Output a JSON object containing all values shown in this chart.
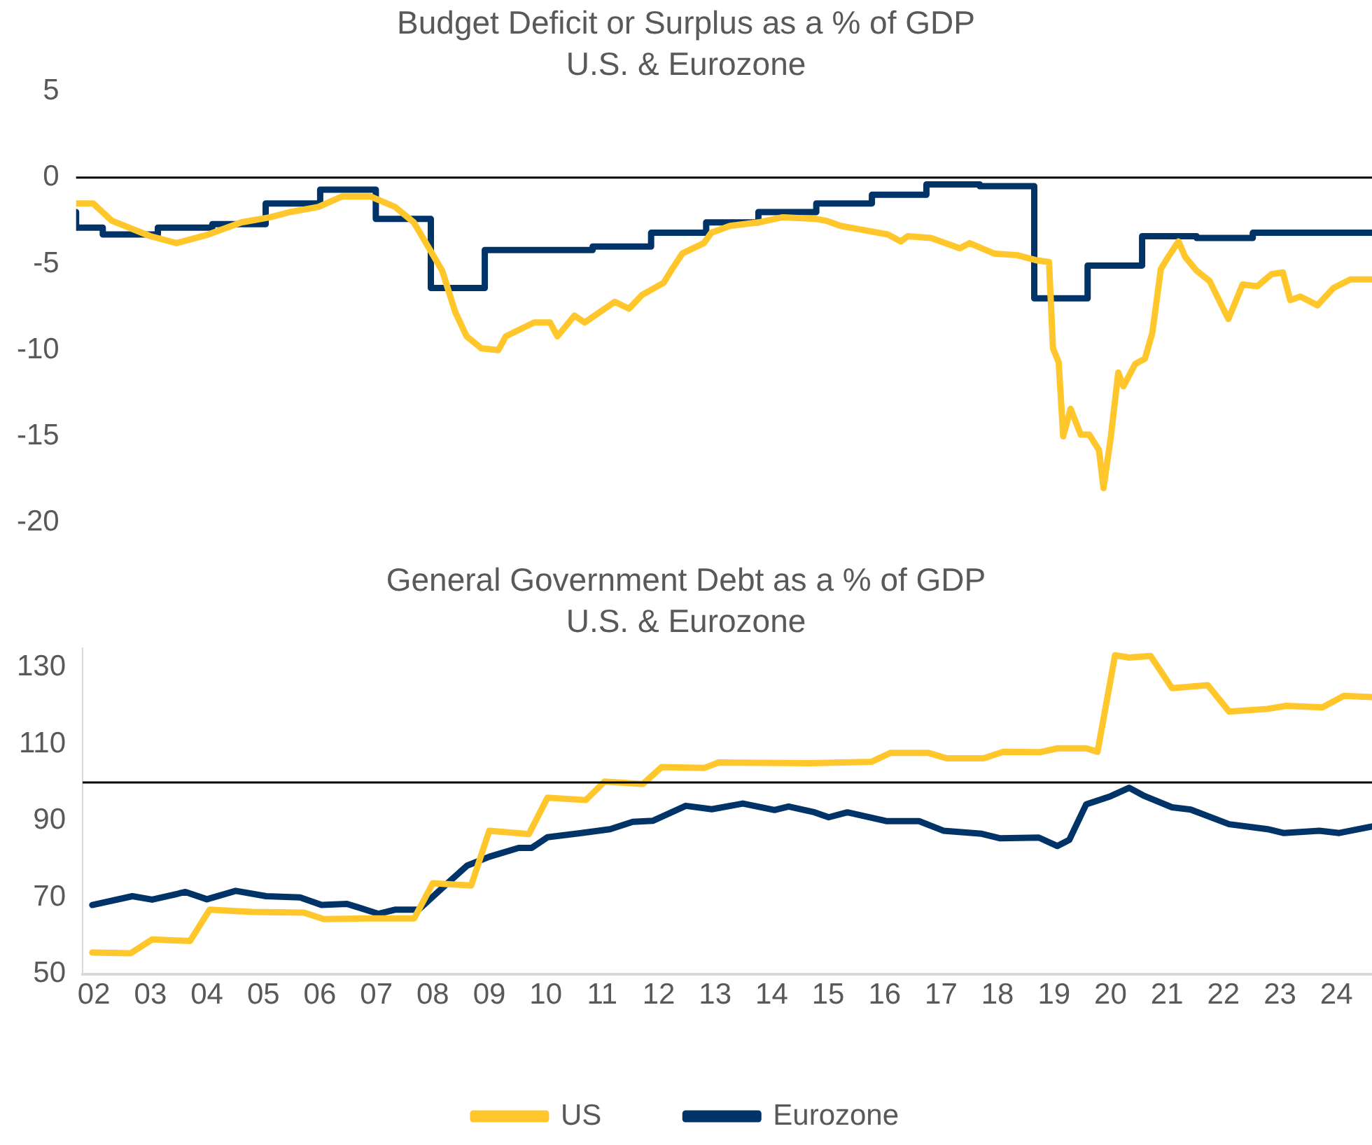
{
  "chart_data": [
    {
      "type": "line",
      "title": "Budget Deficit or Surplus as a % of GDP",
      "subtitle": "U.S. & Eurozone",
      "xlim": [
        2001.8,
        2024.63
      ],
      "ylim": [
        -20,
        5
      ],
      "yticks": [
        -20,
        -15,
        -10,
        -5,
        0,
        5
      ],
      "tick_labels": "y",
      "grid": false,
      "legend": false,
      "ref_lines": [
        {
          "axis": "y",
          "value": 0,
          "color": "#000000"
        }
      ],
      "series": [
        {
          "type": "line",
          "color": "#ffc72c",
          "x": [
            2001.8,
            2002.1,
            2002.43,
            2003.11,
            2003.57,
            2004.13,
            2004.71,
            2005.22,
            2005.57,
            2006.07,
            2006.48,
            2006.99,
            2007.42,
            2007.75,
            2008.0,
            2008.25,
            2008.48,
            2008.68,
            2008.94,
            2009.24,
            2009.37,
            2009.87,
            2010.15,
            2010.28,
            2010.58,
            2010.76,
            2011.29,
            2011.54,
            2011.77,
            2012.15,
            2012.3,
            2012.48,
            2012.86,
            2012.99,
            2013.32,
            2013.82,
            2014.25,
            2014.84,
            2015.01,
            2015.27,
            2015.6,
            2016.1,
            2016.33,
            2016.45,
            2016.86,
            2017.37,
            2017.54,
            2017.97,
            2018.38,
            2018.73,
            2018.94,
            2019.01,
            2019.11,
            2019.19,
            2019.32,
            2019.5,
            2019.65,
            2019.82,
            2019.9,
            2020.03,
            2020.16,
            2020.25,
            2020.46,
            2020.63,
            2020.76,
            2020.91,
            2021.04,
            2021.22,
            2021.34,
            2021.54,
            2021.77,
            2022.1,
            2022.35,
            2022.61,
            2022.86,
            2023.06,
            2023.19,
            2023.37,
            2023.67,
            2023.95,
            2024.25,
            2024.63
          ],
          "values": [
            -1.5,
            -1.5,
            -2.5,
            -3.4,
            -3.8,
            -3.3,
            -2.6,
            -2.3,
            -2.0,
            -1.7,
            -1.1,
            -1.1,
            -1.7,
            -2.6,
            -4.0,
            -5.4,
            -7.8,
            -9.2,
            -9.9,
            -10.0,
            -9.2,
            -8.4,
            -8.4,
            -9.2,
            -8.0,
            -8.4,
            -7.2,
            -7.6,
            -6.8,
            -6.1,
            -5.3,
            -4.4,
            -3.8,
            -3.2,
            -2.8,
            -2.6,
            -2.3,
            -2.4,
            -2.5,
            -2.8,
            -3.0,
            -3.3,
            -3.7,
            -3.4,
            -3.5,
            -4.1,
            -3.8,
            -4.4,
            -4.5,
            -4.8,
            -4.9,
            -9.9,
            -10.7,
            -15.0,
            -13.4,
            -14.9,
            -14.9,
            -15.8,
            -18.0,
            -15.0,
            -11.3,
            -12.1,
            -10.8,
            -10.5,
            -9.0,
            -5.3,
            -4.6,
            -3.7,
            -4.6,
            -5.4,
            -6.0,
            -8.2,
            -6.2,
            -6.3,
            -5.6,
            -5.5,
            -7.1,
            -6.9,
            -7.4,
            -6.4,
            -5.9,
            -5.9
          ]
        },
        {
          "type": "step",
          "color": "#003469",
          "x": [
            2001.8,
            2002.27,
            2003.24,
            2004.2,
            2005.14,
            2006.1,
            2007.08,
            2008.05,
            2009.0,
            2010.9,
            2011.93,
            2012.9,
            2013.82,
            2014.84,
            2015.82,
            2016.78,
            2017.72,
            2018.68,
            2019.62,
            2020.58,
            2021.54,
            2022.53,
            2023.5,
            2024.63
          ],
          "values": [
            -2.0,
            -2.9,
            -3.3,
            -2.9,
            -2.7,
            -1.5,
            -0.7,
            -2.4,
            -6.4,
            -4.2,
            -4.0,
            -3.2,
            -2.6,
            -2.0,
            -1.5,
            -1.0,
            -0.4,
            -0.5,
            -7.0,
            -5.1,
            -3.4,
            -3.5,
            -3.2,
            -3.2
          ]
        }
      ]
    },
    {
      "type": "line",
      "title": "General Government Debt as a % of GDP",
      "subtitle": "U.S. & Eurozone",
      "xlim": [
        2001.8,
        2024.63
      ],
      "xticks": [
        {
          "value": 2002,
          "label": "02"
        },
        {
          "value": 2003,
          "label": "03"
        },
        {
          "value": 2004,
          "label": "04"
        },
        {
          "value": 2005,
          "label": "05"
        },
        {
          "value": 2006,
          "label": "06"
        },
        {
          "value": 2007,
          "label": "07"
        },
        {
          "value": 2008,
          "label": "08"
        },
        {
          "value": 2009,
          "label": "09"
        },
        {
          "value": 2010,
          "label": "10"
        },
        {
          "value": 2011,
          "label": "11"
        },
        {
          "value": 2012,
          "label": "12"
        },
        {
          "value": 2013,
          "label": "13"
        },
        {
          "value": 2014,
          "label": "14"
        },
        {
          "value": 2015,
          "label": "15"
        },
        {
          "value": 2016,
          "label": "16"
        },
        {
          "value": 2017,
          "label": "17"
        },
        {
          "value": 2018,
          "label": "18"
        },
        {
          "value": 2019,
          "label": "19"
        },
        {
          "value": 2020,
          "label": "20"
        },
        {
          "value": 2021,
          "label": "21"
        },
        {
          "value": 2022,
          "label": "22"
        },
        {
          "value": 2023,
          "label": "23"
        },
        {
          "value": 2024,
          "label": "24"
        }
      ],
      "ylim": [
        50,
        135
      ],
      "yticks": [
        50,
        70,
        90,
        110,
        130
      ],
      "grid": false,
      "legend": "bottom",
      "ref_lines": [
        {
          "axis": "y",
          "value": 100,
          "color": "#000000"
        }
      ],
      "series": [
        {
          "name": "US",
          "type": "line",
          "color": "#ffc72c",
          "x": [
            2001.97,
            2002.65,
            2003.03,
            2003.7,
            2004.05,
            2004.8,
            2005.72,
            2006.07,
            2006.83,
            2007.67,
            2008.0,
            2008.68,
            2009.0,
            2009.7,
            2010.03,
            2010.71,
            2011.04,
            2011.72,
            2012.05,
            2012.81,
            2013.06,
            2014.68,
            2015.77,
            2016.1,
            2016.78,
            2017.1,
            2017.75,
            2018.1,
            2018.76,
            2019.06,
            2019.57,
            2019.77,
            2020.08,
            2020.33,
            2020.71,
            2021.09,
            2021.72,
            2022.1,
            2022.78,
            2023.11,
            2023.75,
            2024.13,
            2024.63
          ],
          "values": [
            55.6,
            55.4,
            59.0,
            58.6,
            66.8,
            66.2,
            66.0,
            64.3,
            64.5,
            64.5,
            73.7,
            73.1,
            87.4,
            86.5,
            96.0,
            95.4,
            100.2,
            99.6,
            104.0,
            103.8,
            105.2,
            105.0,
            105.4,
            107.7,
            107.7,
            106.3,
            106.3,
            108.0,
            107.9,
            108.9,
            108.9,
            108.0,
            133.2,
            132.6,
            133.0,
            124.6,
            125.4,
            118.5,
            119.2,
            120.0,
            119.6,
            122.6,
            122.3
          ]
        },
        {
          "name": "Eurozone",
          "type": "line",
          "color": "#003469",
          "x": [
            2001.97,
            2002.68,
            2003.03,
            2003.62,
            2004.0,
            2004.51,
            2005.05,
            2005.65,
            2006.03,
            2006.48,
            2007.04,
            2007.34,
            2007.75,
            2008.18,
            2008.61,
            2009.0,
            2009.52,
            2009.75,
            2010.03,
            2010.63,
            2011.14,
            2011.54,
            2011.9,
            2012.48,
            2012.94,
            2013.49,
            2014.05,
            2014.3,
            2014.76,
            2015.01,
            2015.34,
            2016.03,
            2016.61,
            2017.04,
            2017.72,
            2018.05,
            2018.73,
            2019.06,
            2019.27,
            2019.57,
            2020.0,
            2020.33,
            2020.58,
            2021.09,
            2021.42,
            2022.1,
            2022.78,
            2023.06,
            2023.7,
            2024.05,
            2024.63
          ],
          "values": [
            68.0,
            70.3,
            69.4,
            71.4,
            69.5,
            71.7,
            70.3,
            70.0,
            68.0,
            68.3,
            65.7,
            66.8,
            66.8,
            72.6,
            78.3,
            80.6,
            82.9,
            82.9,
            85.7,
            86.8,
            87.8,
            89.7,
            90.0,
            93.9,
            93.0,
            94.5,
            92.8,
            93.7,
            92.2,
            90.9,
            92.2,
            89.9,
            89.9,
            87.4,
            86.6,
            85.4,
            85.6,
            83.4,
            85.0,
            94.3,
            96.4,
            98.6,
            96.6,
            93.5,
            92.9,
            89.1,
            87.8,
            86.8,
            87.4,
            86.8,
            88.5
          ]
        }
      ]
    }
  ]
}
